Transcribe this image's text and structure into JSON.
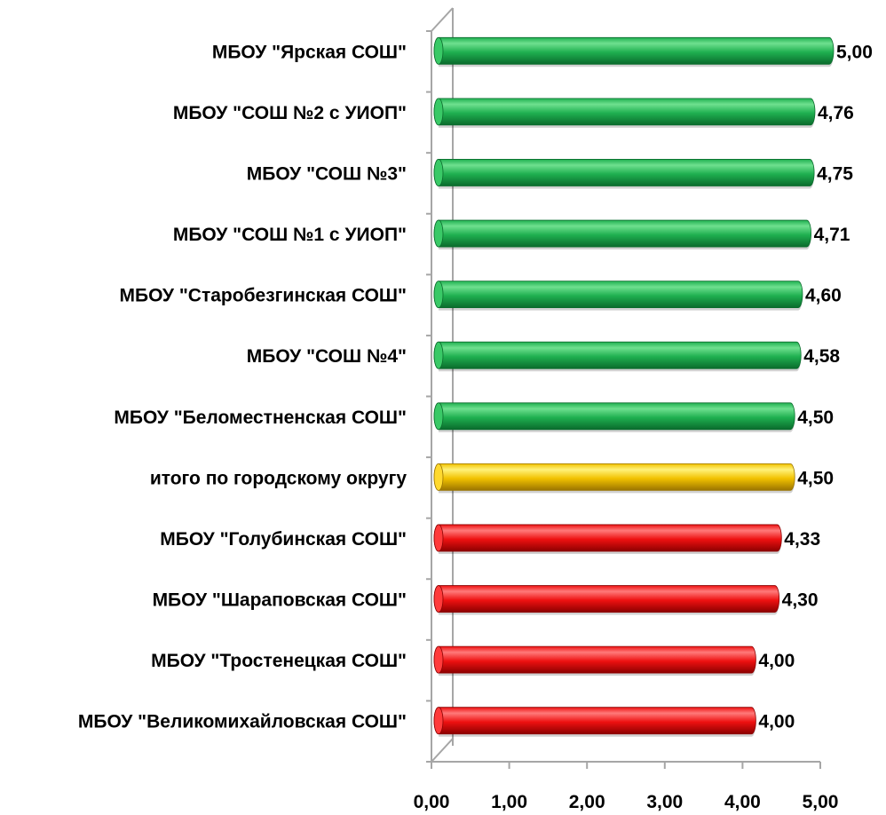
{
  "chart_data": {
    "type": "bar",
    "orientation": "horizontal",
    "style": "3d-cylinder",
    "categories": [
      "МБОУ \"Ярская СОШ\"",
      "МБОУ \"СОШ №2 с УИОП\"",
      "МБОУ \"СОШ №3\"",
      "МБОУ \"СОШ №1 с УИОП\"",
      "МБОУ \"Старобезгинская СОШ\"",
      "МБОУ \"СОШ №4\"",
      "МБОУ \"Беломестненская СОШ\"",
      "итого по городскому округу",
      "МБОУ \"Голубинская СОШ\"",
      "МБОУ \"Шараповская  СОШ\"",
      "МБОУ \"Тростенецкая СОШ\"",
      "МБОУ \"Великомихайловская СОШ\""
    ],
    "values": [
      5.0,
      4.76,
      4.75,
      4.71,
      4.6,
      4.58,
      4.5,
      4.5,
      4.33,
      4.3,
      4.0,
      4.0
    ],
    "value_labels": [
      "5,00",
      "4,76",
      "4,75",
      "4,71",
      "4,60",
      "4,58",
      "4,50",
      "4,50",
      "4,33",
      "4,30",
      "4,00",
      "4,00"
    ],
    "bar_groups": [
      "green",
      "green",
      "green",
      "green",
      "green",
      "green",
      "green",
      "yellow",
      "red",
      "red",
      "red",
      "red"
    ],
    "group_colors": {
      "green": {
        "light": "#6fe08f",
        "mid": "#1fb050",
        "dark": "#0a6b2c",
        "cap": "#39c966"
      },
      "yellow": {
        "light": "#fff27a",
        "mid": "#f2c200",
        "dark": "#9a7400",
        "cap": "#ffd92e"
      },
      "red": {
        "light": "#ff7a7a",
        "mid": "#ee1111",
        "dark": "#8c0000",
        "cap": "#ff3b3b"
      }
    },
    "x_ticks": [
      "0,00",
      "1,00",
      "2,00",
      "3,00",
      "4,00",
      "5,00"
    ],
    "x_tick_values": [
      0,
      1,
      2,
      3,
      4,
      5
    ],
    "xlim": [
      0,
      5
    ],
    "title": "",
    "xlabel": "",
    "ylabel": "",
    "grid": false,
    "legend": "none",
    "axis_color": "#a6a6a6"
  }
}
